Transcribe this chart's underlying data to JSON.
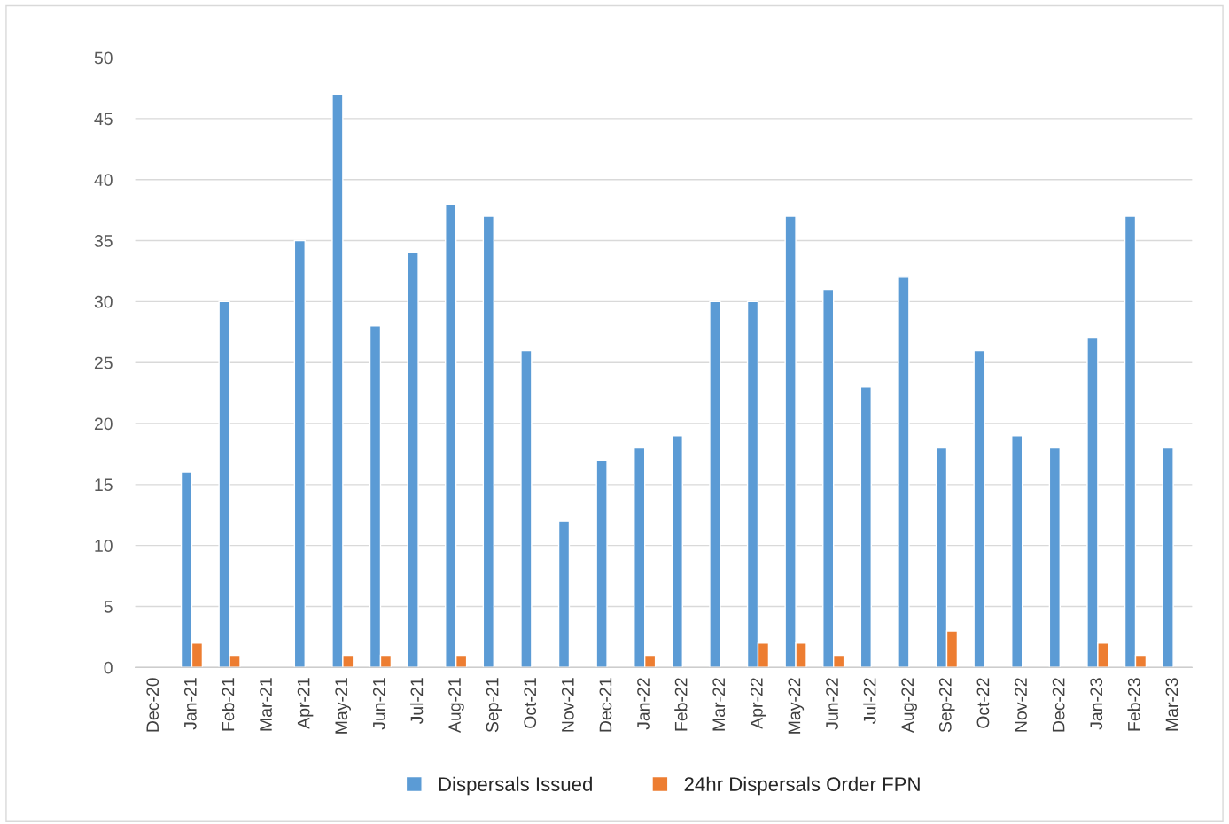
{
  "chart_data": {
    "type": "bar",
    "categories": [
      "Dec-20",
      "Jan-21",
      "Feb-21",
      "Mar-21",
      "Apr-21",
      "May-21",
      "Jun-21",
      "Jul-21",
      "Aug-21",
      "Sep-21",
      "Oct-21",
      "Nov-21",
      "Dec-21",
      "Jan-22",
      "Feb-22",
      "Mar-22",
      "Apr-22",
      "May-22",
      "Jun-22",
      "Jul-22",
      "Aug-22",
      "Sep-22",
      "Oct-22",
      "Nov-22",
      "Dec-22",
      "Jan-23",
      "Feb-23",
      "Mar-23"
    ],
    "series": [
      {
        "name": "Dispersals Issued",
        "color": "#5b9bd5",
        "values": [
          null,
          16,
          30,
          null,
          35,
          47,
          28,
          34,
          38,
          37,
          26,
          12,
          17,
          18,
          19,
          30,
          30,
          37,
          31,
          23,
          32,
          18,
          26,
          19,
          18,
          27,
          37,
          18
        ]
      },
      {
        "name": "24hr Dispersals Order FPN",
        "color": "#ed7d31",
        "values": [
          null,
          2,
          1,
          null,
          null,
          1,
          1,
          null,
          1,
          null,
          null,
          null,
          null,
          1,
          null,
          null,
          2,
          2,
          1,
          null,
          null,
          3,
          null,
          null,
          null,
          2,
          1,
          null
        ]
      }
    ],
    "ylim": [
      0,
      50
    ],
    "yticks": [
      0,
      5,
      10,
      15,
      20,
      25,
      30,
      35,
      40,
      45,
      50
    ],
    "grid": "y",
    "legend": "bottom"
  }
}
